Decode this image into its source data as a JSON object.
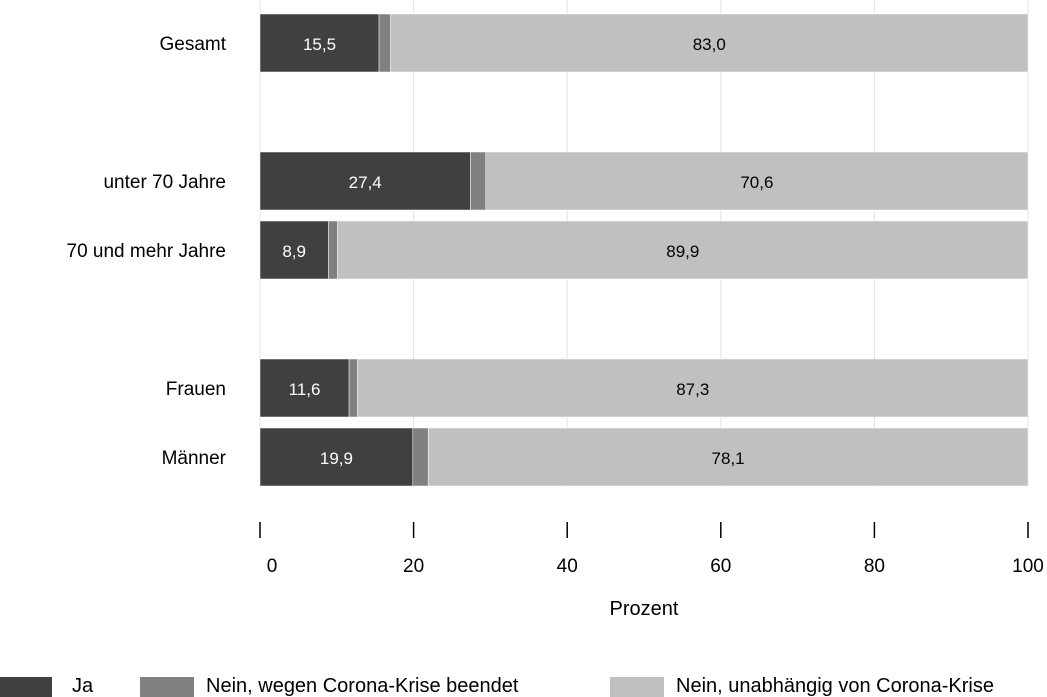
{
  "chart_data": {
    "type": "bar",
    "orientation": "horizontal",
    "stacked": true,
    "title": "",
    "xlabel": "Prozent",
    "ylabel": "",
    "xlim": [
      0,
      100
    ],
    "x_ticks": [
      "0",
      "20",
      "40",
      "60",
      "80",
      "100"
    ],
    "grid": "vertical",
    "legend_position": "bottom",
    "categories": [
      "Gesamt",
      "unter 70 Jahre",
      "70 und mehr Jahre",
      "Frauen",
      "Männer"
    ],
    "groups": [
      [
        "Gesamt"
      ],
      [
        "unter 70 Jahre",
        "70 und mehr Jahre"
      ],
      [
        "Frauen",
        "Männer"
      ]
    ],
    "series": [
      {
        "name": "Ja",
        "color": "#404040",
        "label_color": "#ffffff",
        "values": [
          15.5,
          27.4,
          8.9,
          11.6,
          19.9
        ],
        "labels": [
          "15,5",
          "27,4",
          "8,9",
          "11,6",
          "19,9"
        ]
      },
      {
        "name": "Nein, wegen Corona-Krise beendet",
        "color": "#808080",
        "label_color": "#ffffff",
        "values": [
          1.5,
          2.0,
          1.2,
          1.1,
          2.0
        ],
        "labels": [
          "",
          "",
          "",
          "",
          ""
        ]
      },
      {
        "name": "Nein, unabhängig von Corona-Krise",
        "color": "#c0c0c0",
        "label_color": "#000000",
        "values": [
          83.0,
          70.6,
          89.9,
          87.3,
          78.1
        ],
        "labels": [
          "83,0",
          "70,6",
          "89,9",
          "87,3",
          "78,1"
        ]
      }
    ]
  }
}
